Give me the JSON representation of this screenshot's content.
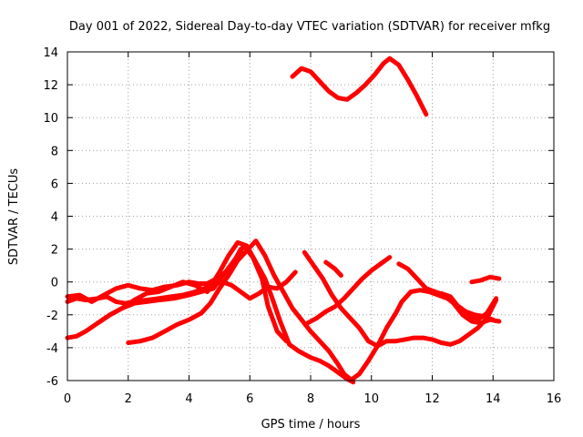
{
  "chart_data": {
    "type": "line",
    "title": "Day 001 of 2022, Sidereal Day-to-day VTEC variation (SDTVAR) for receiver mfkg",
    "xlabel": "GPS time / hours",
    "ylabel": "SDTVAR / TECUs",
    "xlim": [
      0,
      16
    ],
    "ylim": [
      -6,
      14
    ],
    "xticks": [
      0,
      2,
      4,
      6,
      8,
      10,
      12,
      14,
      16
    ],
    "yticks": [
      -6,
      -4,
      -2,
      0,
      2,
      4,
      6,
      8,
      10,
      12,
      14
    ],
    "grid": true,
    "color": "#ff0000",
    "series": [
      {
        "name": "s1",
        "x": [
          7.4,
          7.7,
          8.0,
          8.3,
          8.6,
          8.9,
          9.2,
          9.5,
          9.8,
          10.1,
          10.4,
          10.6,
          10.9,
          11.2,
          11.5,
          11.8
        ],
        "y": [
          12.5,
          13.0,
          12.8,
          12.2,
          11.6,
          11.2,
          11.1,
          11.5,
          12.0,
          12.6,
          13.3,
          13.6,
          13.2,
          12.3,
          11.3,
          10.2
        ]
      },
      {
        "name": "s2",
        "x": [
          0.0,
          0.3,
          0.6,
          1.0,
          1.3,
          1.6,
          1.9,
          2.2,
          2.6,
          3.0,
          3.4,
          3.8,
          4.2,
          4.5,
          4.8,
          5.1,
          5.4,
          5.7,
          6.0,
          6.3,
          6.6,
          6.9,
          7.2,
          7.5
        ],
        "y": [
          -1.2,
          -1.0,
          -1.1,
          -1.0,
          -0.9,
          -1.2,
          -1.3,
          -1.2,
          -1.1,
          -1.0,
          -0.9,
          -0.8,
          -0.6,
          -0.4,
          -0.1,
          0.0,
          -0.2,
          -0.6,
          -1.0,
          -0.7,
          -0.3,
          -0.4,
          0.0,
          0.6
        ]
      },
      {
        "name": "s3",
        "x": [
          0.0,
          0.3,
          0.6,
          1.0,
          1.4,
          1.8,
          2.2,
          2.6,
          3.0,
          3.5,
          4.0,
          4.4,
          4.8,
          5.2,
          5.6,
          5.8,
          6.1,
          6.4,
          6.6,
          6.9,
          7.2
        ],
        "y": [
          -3.4,
          -3.3,
          -3.0,
          -2.5,
          -2.0,
          -1.6,
          -1.3,
          -1.2,
          -1.1,
          -1.0,
          -0.8,
          -0.6,
          -0.4,
          0.6,
          1.6,
          2.2,
          1.5,
          0.2,
          -1.5,
          -3.0,
          -3.6
        ]
      },
      {
        "name": "s4",
        "x": [
          0.0,
          0.4,
          0.8,
          1.2,
          1.6,
          2.0,
          2.4,
          2.8,
          3.2,
          3.6,
          4.0,
          4.3,
          4.6,
          4.9,
          5.2,
          5.5,
          5.7
        ],
        "y": [
          -0.9,
          -0.8,
          -1.2,
          -0.8,
          -0.4,
          -0.2,
          -0.4,
          -0.5,
          -0.3,
          -0.2,
          0.0,
          -0.1,
          -0.1,
          0.2,
          0.6,
          1.3,
          2.0
        ]
      },
      {
        "name": "s5",
        "x": [
          1.0,
          1.4,
          1.8,
          2.2,
          2.6,
          3.0,
          3.4,
          3.8,
          4.2,
          4.6,
          5.0,
          5.3,
          5.6,
          5.9,
          6.2,
          6.5,
          6.7,
          7.0,
          7.3,
          7.6,
          8.0,
          8.3,
          8.6,
          8.9,
          9.2,
          9.4
        ],
        "y": [
          -2.5,
          -2.0,
          -1.6,
          -1.1,
          -0.7,
          -0.6,
          -0.3,
          0.0,
          -0.2,
          -0.6,
          0.6,
          1.6,
          2.4,
          2.2,
          1.2,
          0.2,
          -0.8,
          -2.4,
          -3.8,
          -4.2,
          -4.6,
          -4.8,
          -5.1,
          -5.5,
          -5.9,
          -6.1
        ]
      },
      {
        "name": "s6",
        "x": [
          2.0,
          2.4,
          2.8,
          3.2,
          3.6,
          4.0,
          4.4,
          4.7,
          5.0,
          5.3,
          5.6,
          5.9,
          6.2,
          6.5,
          6.8,
          7.1,
          7.4,
          7.7,
          8.0,
          8.3,
          8.6,
          8.9,
          9.1,
          9.3
        ],
        "y": [
          -3.7,
          -3.6,
          -3.4,
          -3.0,
          -2.6,
          -2.3,
          -1.9,
          -1.3,
          -0.4,
          0.4,
          1.3,
          1.9,
          2.5,
          1.6,
          0.4,
          -0.6,
          -1.6,
          -2.3,
          -3.0,
          -3.6,
          -4.2,
          -5.0,
          -5.6,
          -5.9
        ]
      },
      {
        "name": "s7",
        "x": [
          7.8,
          8.1,
          8.4,
          8.7,
          9.0,
          9.3,
          9.6,
          9.9,
          10.2,
          10.5,
          10.8,
          11.1,
          11.4,
          11.7,
          12.0,
          12.3,
          12.6,
          12.9,
          13.2,
          13.5,
          13.8,
          14.1
        ],
        "y": [
          1.8,
          1.0,
          0.2,
          -0.8,
          -1.6,
          -2.2,
          -2.8,
          -3.6,
          -3.9,
          -3.6,
          -3.6,
          -3.5,
          -3.4,
          -3.4,
          -3.5,
          -3.7,
          -3.8,
          -3.6,
          -3.2,
          -2.8,
          -2.2,
          -1.1
        ]
      },
      {
        "name": "s8",
        "x": [
          7.9,
          8.2,
          8.5,
          8.8,
          9.1,
          9.4,
          9.7,
          10.0,
          10.3,
          10.6
        ],
        "y": [
          -2.5,
          -2.2,
          -1.8,
          -1.5,
          -1.0,
          -0.4,
          0.2,
          0.7,
          1.1,
          1.5
        ]
      },
      {
        "name": "s9",
        "x": [
          9.3,
          9.6,
          9.9,
          10.2,
          10.5,
          10.8,
          11.0,
          11.3,
          11.6,
          11.9,
          12.2,
          12.5,
          12.8,
          13.1,
          13.4,
          13.7,
          14.0
        ],
        "y": [
          -6.0,
          -5.6,
          -4.8,
          -3.9,
          -2.8,
          -1.9,
          -1.2,
          -0.6,
          -0.5,
          -0.6,
          -0.8,
          -1.0,
          -1.4,
          -1.8,
          -2.0,
          -2.1,
          -2.3
        ]
      },
      {
        "name": "s10",
        "x": [
          10.9,
          11.2,
          11.5,
          11.8,
          12.1,
          12.4,
          12.7,
          13.0,
          13.3,
          13.6,
          13.9,
          14.2
        ],
        "y": [
          1.1,
          0.8,
          0.2,
          -0.4,
          -0.6,
          -0.8,
          -1.3,
          -2.0,
          -2.4,
          -2.5,
          -2.3,
          -2.4
        ]
      },
      {
        "name": "s11",
        "x": [
          12.3,
          12.6,
          12.9,
          13.2,
          13.5,
          13.8,
          14.1
        ],
        "y": [
          -0.7,
          -0.9,
          -1.6,
          -2.1,
          -2.3,
          -1.9,
          -1.0
        ]
      },
      {
        "name": "s12",
        "x": [
          13.3,
          13.6,
          13.9,
          14.2
        ],
        "y": [
          0.0,
          0.1,
          0.3,
          0.2
        ]
      },
      {
        "name": "s13",
        "x": [
          8.5,
          8.8,
          9.0
        ],
        "y": [
          1.2,
          0.8,
          0.4
        ]
      }
    ]
  }
}
